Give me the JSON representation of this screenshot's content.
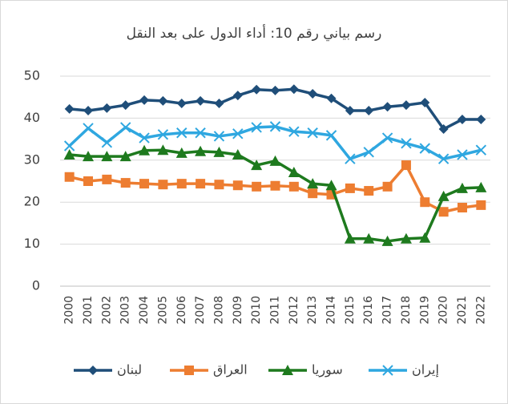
{
  "chart_data": {
    "type": "line",
    "title": "رسم بياني رقم 10: أداء الدول على بعد النقل",
    "categories": [
      "2000",
      "2001",
      "2002",
      "2003",
      "2004",
      "2005",
      "2006",
      "2007",
      "2008",
      "2009",
      "2010",
      "2011",
      "2012",
      "2013",
      "2014",
      "2015",
      "2016",
      "2017",
      "2018",
      "2019",
      "2020",
      "2021",
      "2022"
    ],
    "series": [
      {
        "name": "لبنان",
        "color": "#1f4e79",
        "marker": "diamond",
        "values": [
          42.2,
          41.8,
          42.4,
          43.1,
          44.3,
          44.1,
          43.5,
          44.1,
          43.5,
          45.4,
          46.8,
          46.6,
          46.9,
          45.8,
          44.7,
          41.8,
          41.8,
          42.7,
          43.1,
          43.7,
          37.4,
          39.7,
          39.7
        ]
      },
      {
        "name": "العراق",
        "color": "#ed7d31",
        "marker": "square",
        "values": [
          26,
          25,
          25.4,
          24.6,
          24.4,
          24.2,
          24.4,
          24.4,
          24.2,
          24,
          23.7,
          23.9,
          23.7,
          22.1,
          21.8,
          23.3,
          22.7,
          23.7,
          28.8,
          20,
          17.7,
          18.7,
          19.3
        ]
      },
      {
        "name": "سوريا",
        "color": "#1e7a1e",
        "marker": "triangle",
        "values": [
          31.3,
          30.9,
          30.9,
          30.9,
          32.3,
          32.4,
          31.7,
          32.1,
          31.9,
          31.3,
          28.8,
          29.8,
          27.1,
          24.4,
          24,
          11.3,
          11.3,
          10.7,
          11.3,
          11.5,
          21.4,
          23.3,
          23.5
        ]
      },
      {
        "name": "إيران",
        "color": "#2fa7e0",
        "marker": "x",
        "values": [
          33.4,
          37.6,
          34.2,
          37.8,
          35.3,
          36.1,
          36.5,
          36.5,
          35.7,
          36.3,
          37.8,
          38,
          36.8,
          36.5,
          35.9,
          30.3,
          31.9,
          35.3,
          34,
          32.8,
          30.3,
          31.3,
          32.4
        ]
      }
    ],
    "ylim": [
      0,
      50
    ],
    "yticks": [
      0,
      10,
      20,
      30,
      40,
      50
    ],
    "grid": true
  }
}
